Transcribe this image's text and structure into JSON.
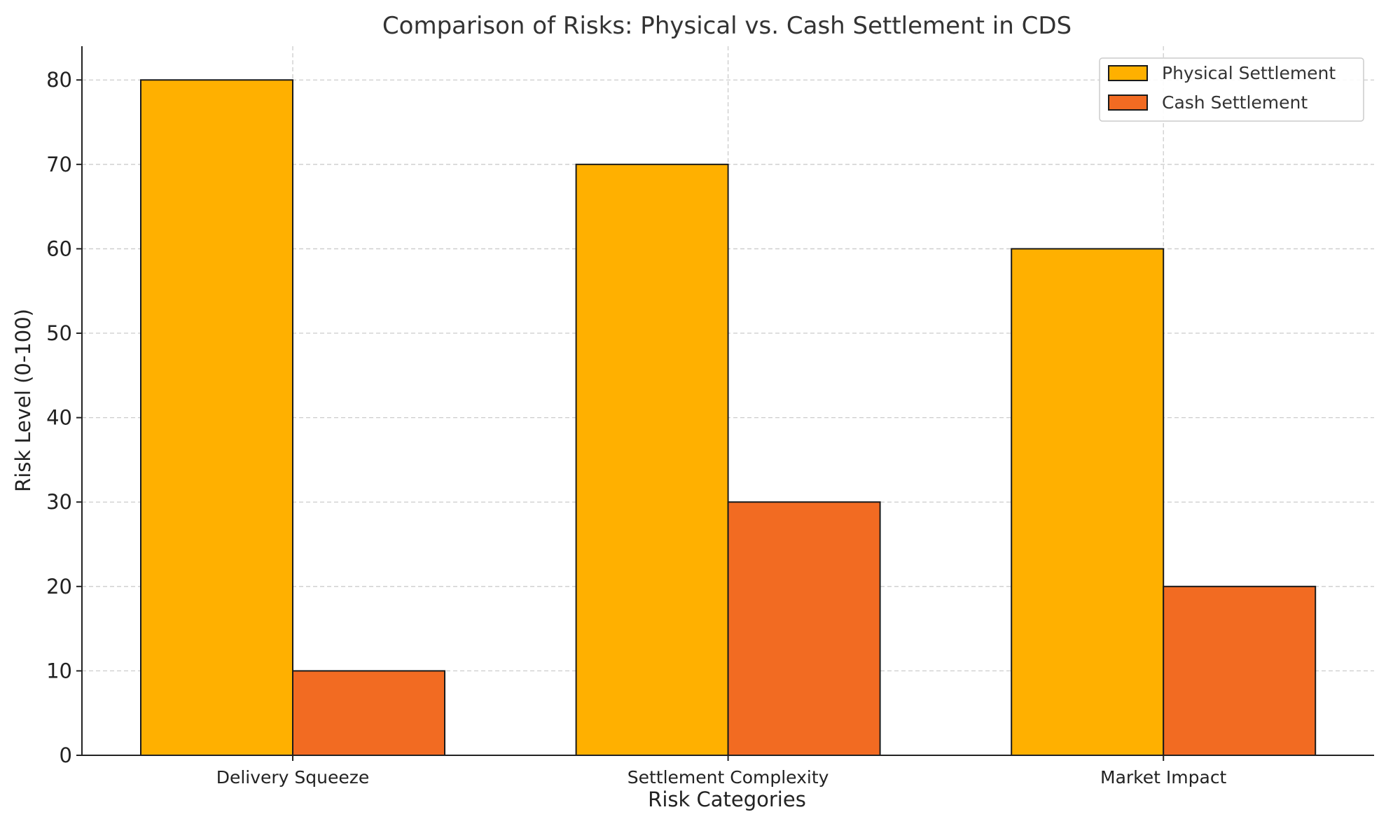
{
  "chart_data": {
    "type": "bar",
    "title": "Comparison of Risks: Physical vs. Cash Settlement in CDS",
    "xlabel": "Risk Categories",
    "ylabel": "Risk Level (0-100)",
    "categories": [
      "Delivery Squeeze",
      "Settlement Complexity",
      "Market Impact"
    ],
    "series": [
      {
        "name": "Physical Settlement",
        "values": [
          80,
          70,
          60
        ],
        "color": "#FFB000"
      },
      {
        "name": "Cash Settlement",
        "values": [
          10,
          30,
          20
        ],
        "color": "#F26B22"
      }
    ],
    "ylim": [
      0,
      84
    ],
    "yticks": [
      0,
      10,
      20,
      30,
      40,
      50,
      60,
      70,
      80
    ],
    "grid": true,
    "legend_position": "top-right"
  }
}
